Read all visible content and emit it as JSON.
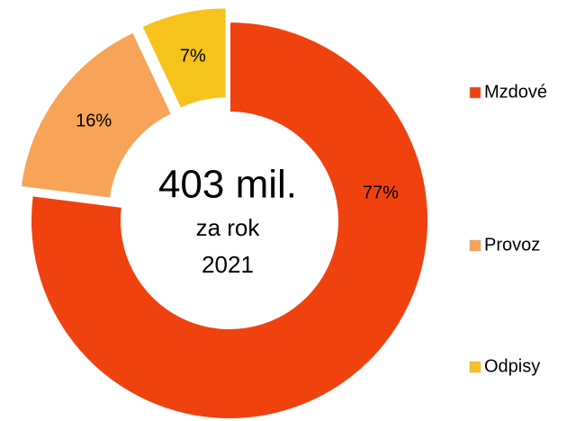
{
  "chart_data": {
    "type": "donut",
    "categories": [
      "Mzdové",
      "Provoz",
      "Odpisy"
    ],
    "values": [
      77,
      16,
      7
    ],
    "value_labels": [
      "77%",
      "16%",
      "7%"
    ],
    "colors": [
      "#f0420f",
      "#f7a358",
      "#f6c21c"
    ],
    "center_text": [
      "403 mil.",
      "za rok",
      "2021"
    ],
    "legend": "right"
  }
}
